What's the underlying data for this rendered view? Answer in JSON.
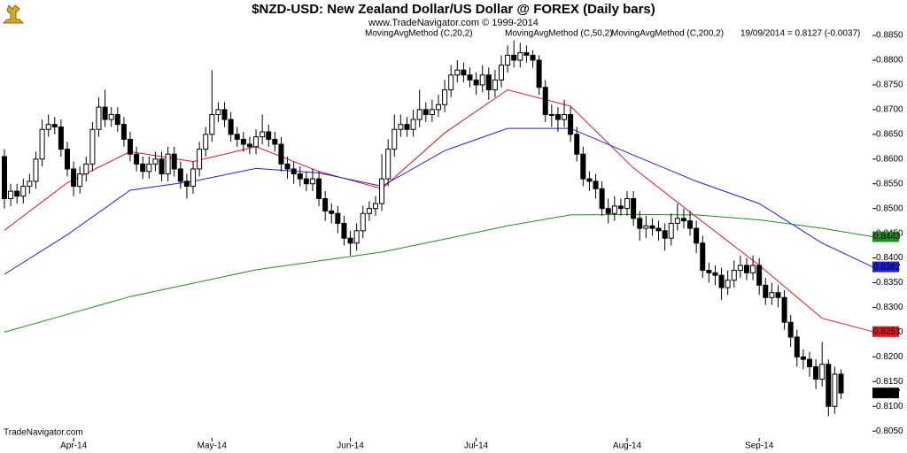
{
  "chart_data": {
    "type": "candlestick",
    "title": "$NZD-USD:  New Zealand Dollar/US Dollar @ FOREX  (Daily bars)",
    "subtitle": "www.TradeNavigator.com © 1999-2014",
    "status": "19/09/2014 = 0.8127 (-0.0037)",
    "source": "TradeNavigator.com",
    "candle_up_color": "#ffffff",
    "candle_down_color": "#000000",
    "xlim": [
      -0.7,
      138
    ],
    "xticks": [
      {
        "value": 11,
        "label": "Apr-14"
      },
      {
        "value": 33,
        "label": "May-14"
      },
      {
        "value": 55,
        "label": "Jun-14"
      },
      {
        "value": 75,
        "label": "Jul-14"
      },
      {
        "value": 99,
        "label": "Aug-14"
      },
      {
        "value": 120,
        "label": "Sep-14"
      }
    ],
    "ylim": [
      0.8036,
      0.8868
    ],
    "yticks": [
      {
        "value": 0.805,
        "label": "0.8050"
      },
      {
        "value": 0.81,
        "label": "0.8100"
      },
      {
        "value": 0.815,
        "label": "0.8150"
      },
      {
        "value": 0.82,
        "label": "0.8200"
      },
      {
        "value": 0.825,
        "label": "0.8250"
      },
      {
        "value": 0.83,
        "label": "0.8300"
      },
      {
        "value": 0.835,
        "label": "0.8350"
      },
      {
        "value": 0.84,
        "label": "0.8400"
      },
      {
        "value": 0.845,
        "label": "0.8450"
      },
      {
        "value": 0.85,
        "label": "0.8500"
      },
      {
        "value": 0.855,
        "label": "0.8550"
      },
      {
        "value": 0.86,
        "label": "0.8600"
      },
      {
        "value": 0.865,
        "label": "0.8650"
      },
      {
        "value": 0.87,
        "label": "0.8700"
      },
      {
        "value": 0.875,
        "label": "0.8750"
      },
      {
        "value": 0.88,
        "label": "0.8800"
      },
      {
        "value": 0.885,
        "label": "0.8850"
      }
    ],
    "open": [
      0.8605,
      0.852,
      0.8535,
      0.8525,
      0.8545,
      0.8555,
      0.86,
      0.866,
      0.867,
      0.8665,
      0.862,
      0.858,
      0.8545,
      0.857,
      0.859,
      0.866,
      0.8705,
      0.868,
      0.869,
      0.867,
      0.864,
      0.861,
      0.859,
      0.8575,
      0.859,
      0.86,
      0.857,
      0.861,
      0.858,
      0.8555,
      0.8545,
      0.858,
      0.862,
      0.865,
      0.869,
      0.87,
      0.868,
      0.865,
      0.864,
      0.863,
      0.8625,
      0.8645,
      0.8655,
      0.864,
      0.863,
      0.859,
      0.858,
      0.857,
      0.856,
      0.855,
      0.856,
      0.852,
      0.8495,
      0.849,
      0.847,
      0.844,
      0.843,
      0.8455,
      0.849,
      0.85,
      0.851,
      0.856,
      0.862,
      0.866,
      0.867,
      0.866,
      0.868,
      0.87,
      0.869,
      0.87,
      0.871,
      0.874,
      0.877,
      0.878,
      0.877,
      0.876,
      0.875,
      0.877,
      0.874,
      0.876,
      0.879,
      0.881,
      0.88,
      0.8815,
      0.881,
      0.88,
      0.8745,
      0.869,
      0.869,
      0.868,
      0.869,
      0.865,
      0.861,
      0.856,
      0.8555,
      0.854,
      0.85,
      0.849,
      0.8505,
      0.85,
      0.852,
      0.848,
      0.846,
      0.8465,
      0.846,
      0.8455,
      0.844,
      0.847,
      0.848,
      0.8475,
      0.846,
      0.843,
      0.8375,
      0.837,
      0.8365,
      0.834,
      0.8355,
      0.8375,
      0.8385,
      0.837,
      0.8385,
      0.8345,
      0.832,
      0.833,
      0.832,
      0.827,
      0.824,
      0.82,
      0.8195,
      0.818,
      0.8155,
      0.8185,
      0.81,
      0.8165
    ],
    "high": [
      0.862,
      0.855,
      0.855,
      0.856,
      0.857,
      0.8615,
      0.868,
      0.869,
      0.8685,
      0.868,
      0.8635,
      0.8595,
      0.8585,
      0.8605,
      0.8675,
      0.8725,
      0.874,
      0.8705,
      0.8705,
      0.8685,
      0.8655,
      0.8625,
      0.8605,
      0.8605,
      0.8615,
      0.8615,
      0.8625,
      0.8625,
      0.8595,
      0.857,
      0.8595,
      0.8635,
      0.8665,
      0.878,
      0.8715,
      0.8715,
      0.8695,
      0.8665,
      0.8655,
      0.8645,
      0.866,
      0.869,
      0.867,
      0.8655,
      0.8645,
      0.8605,
      0.8595,
      0.8585,
      0.8575,
      0.858,
      0.8575,
      0.8535,
      0.851,
      0.8505,
      0.8485,
      0.8455,
      0.847,
      0.8505,
      0.8515,
      0.8525,
      0.861,
      0.864,
      0.869,
      0.869,
      0.8685,
      0.87,
      0.874,
      0.8715,
      0.872,
      0.873,
      0.876,
      0.879,
      0.88,
      0.8795,
      0.8785,
      0.8775,
      0.879,
      0.8785,
      0.878,
      0.881,
      0.883,
      0.884,
      0.8835,
      0.883,
      0.882,
      0.881,
      0.876,
      0.871,
      0.8705,
      0.872,
      0.8705,
      0.8665,
      0.8625,
      0.8575,
      0.857,
      0.8555,
      0.852,
      0.8525,
      0.852,
      0.8535,
      0.8535,
      0.8495,
      0.8485,
      0.848,
      0.8475,
      0.847,
      0.849,
      0.851,
      0.85,
      0.8495,
      0.8475,
      0.8445,
      0.839,
      0.8385,
      0.838,
      0.8375,
      0.8395,
      0.8405,
      0.84,
      0.8405,
      0.84,
      0.836,
      0.835,
      0.8345,
      0.8335,
      0.8285,
      0.8255,
      0.8215,
      0.821,
      0.8195,
      0.823,
      0.8195,
      0.818,
      0.8175
    ],
    "low": [
      0.85,
      0.8505,
      0.851,
      0.851,
      0.853,
      0.854,
      0.8585,
      0.8645,
      0.865,
      0.8605,
      0.8565,
      0.8525,
      0.853,
      0.8555,
      0.8575,
      0.8645,
      0.8665,
      0.8665,
      0.8655,
      0.8625,
      0.8595,
      0.8575,
      0.856,
      0.856,
      0.8575,
      0.8555,
      0.8555,
      0.8565,
      0.854,
      0.852,
      0.853,
      0.8565,
      0.8605,
      0.8635,
      0.8675,
      0.8665,
      0.8635,
      0.8625,
      0.8615,
      0.861,
      0.861,
      0.863,
      0.8625,
      0.8615,
      0.8575,
      0.856,
      0.855,
      0.8545,
      0.8535,
      0.8535,
      0.8505,
      0.8475,
      0.847,
      0.845,
      0.8425,
      0.8405,
      0.8415,
      0.844,
      0.8475,
      0.8485,
      0.8495,
      0.8545,
      0.8605,
      0.8645,
      0.8645,
      0.8645,
      0.8665,
      0.8675,
      0.8675,
      0.8685,
      0.8695,
      0.8725,
      0.8755,
      0.8755,
      0.8745,
      0.873,
      0.8735,
      0.872,
      0.8725,
      0.8745,
      0.8775,
      0.8785,
      0.8785,
      0.8795,
      0.8785,
      0.873,
      0.8675,
      0.8665,
      0.8655,
      0.8665,
      0.8635,
      0.8595,
      0.8545,
      0.8535,
      0.852,
      0.8485,
      0.847,
      0.8475,
      0.8485,
      0.8485,
      0.8465,
      0.8435,
      0.844,
      0.8445,
      0.8435,
      0.8415,
      0.8425,
      0.8455,
      0.846,
      0.8445,
      0.841,
      0.836,
      0.835,
      0.8345,
      0.8315,
      0.8325,
      0.834,
      0.836,
      0.8355,
      0.8355,
      0.8325,
      0.8305,
      0.8305,
      0.83,
      0.8255,
      0.822,
      0.818,
      0.8175,
      0.816,
      0.8135,
      0.814,
      0.808,
      0.8085,
      0.8115
    ],
    "close": [
      0.852,
      0.8535,
      0.8525,
      0.8545,
      0.8555,
      0.86,
      0.866,
      0.867,
      0.8665,
      0.862,
      0.858,
      0.8545,
      0.857,
      0.859,
      0.866,
      0.8705,
      0.868,
      0.869,
      0.867,
      0.864,
      0.861,
      0.859,
      0.8575,
      0.859,
      0.86,
      0.857,
      0.861,
      0.858,
      0.8555,
      0.8545,
      0.858,
      0.862,
      0.865,
      0.869,
      0.87,
      0.868,
      0.865,
      0.864,
      0.863,
      0.8625,
      0.8645,
      0.8655,
      0.864,
      0.863,
      0.859,
      0.858,
      0.857,
      0.856,
      0.855,
      0.856,
      0.852,
      0.8495,
      0.849,
      0.847,
      0.844,
      0.843,
      0.8455,
      0.849,
      0.85,
      0.851,
      0.856,
      0.862,
      0.866,
      0.867,
      0.866,
      0.868,
      0.87,
      0.869,
      0.87,
      0.871,
      0.874,
      0.877,
      0.878,
      0.877,
      0.876,
      0.875,
      0.877,
      0.874,
      0.876,
      0.879,
      0.881,
      0.88,
      0.8815,
      0.881,
      0.88,
      0.8745,
      0.869,
      0.869,
      0.868,
      0.869,
      0.865,
      0.861,
      0.856,
      0.8555,
      0.854,
      0.85,
      0.849,
      0.8505,
      0.85,
      0.852,
      0.848,
      0.846,
      0.8465,
      0.846,
      0.8455,
      0.844,
      0.847,
      0.848,
      0.8475,
      0.846,
      0.843,
      0.8375,
      0.837,
      0.8365,
      0.834,
      0.8355,
      0.8375,
      0.8385,
      0.837,
      0.8385,
      0.8345,
      0.832,
      0.833,
      0.832,
      0.827,
      0.824,
      0.82,
      0.8195,
      0.818,
      0.8155,
      0.8185,
      0.81,
      0.8165,
      0.8127
    ],
    "series": [
      {
        "name": "MovingAvgMethod (C,20,2)",
        "color": "#e8141e",
        "x": [
          0,
          10,
          20,
          30,
          40,
          50,
          60,
          70,
          80,
          90,
          100,
          110,
          120,
          130,
          138
        ],
        "values": [
          0.8456,
          0.8552,
          0.8615,
          0.8595,
          0.8625,
          0.8575,
          0.854,
          0.8653,
          0.874,
          0.8707,
          0.8582,
          0.8483,
          0.8385,
          0.8278,
          0.8251
        ]
      },
      {
        "name": "MovingAvgMethod (C,50,2)",
        "color": "#1e1ee6",
        "x": [
          0,
          10,
          20,
          30,
          40,
          50,
          60,
          70,
          80,
          90,
          100,
          110,
          120,
          130,
          138
        ],
        "values": [
          0.8367,
          0.8447,
          0.8537,
          0.8555,
          0.8581,
          0.8572,
          0.8545,
          0.8617,
          0.8662,
          0.8662,
          0.8608,
          0.8555,
          0.851,
          0.843,
          0.8382
        ]
      },
      {
        "name": "MovingAvgMethod (C,200,2)",
        "color": "#1e8c1e",
        "x": [
          0,
          10,
          20,
          30,
          40,
          50,
          60,
          70,
          80,
          90,
          100,
          110,
          120,
          130,
          138
        ],
        "values": [
          0.825,
          0.8286,
          0.8322,
          0.8349,
          0.8376,
          0.8394,
          0.8412,
          0.8438,
          0.8465,
          0.8487,
          0.8488,
          0.8487,
          0.8477,
          0.846,
          0.8443
        ]
      }
    ]
  }
}
